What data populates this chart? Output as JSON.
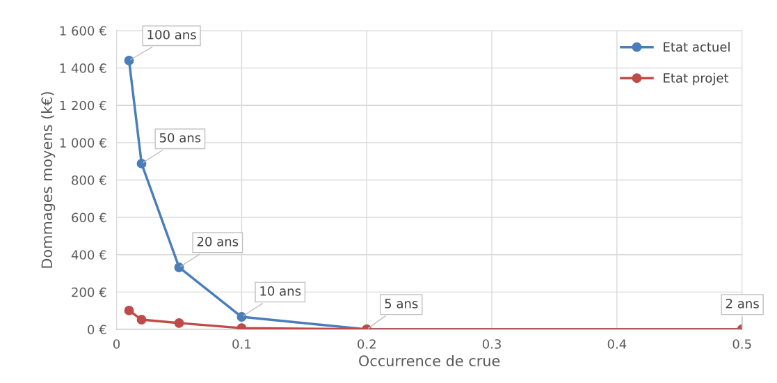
{
  "chart_data": {
    "type": "line",
    "xlabel": "Occurrence de crue",
    "ylabel": "Dommages moyens (k€)",
    "x": [
      0.01,
      0.02,
      0.05,
      0.1,
      0.2,
      0.5
    ],
    "series": [
      {
        "name": "Etat actuel",
        "color": "#4a7ebb",
        "values": [
          1440,
          888,
          332,
          67,
          0,
          0
        ]
      },
      {
        "name": "Etat projet",
        "color": "#be4b48",
        "values": [
          101,
          52,
          34,
          7,
          0,
          0
        ]
      }
    ],
    "xlim": [
      0,
      0.5
    ],
    "xticks": [
      0,
      0.1,
      0.2,
      0.3,
      0.4,
      0.5
    ],
    "ylim": [
      0,
      1600
    ],
    "yticks": [
      {
        "value": 0,
        "label": "0 €"
      },
      {
        "value": 200,
        "label": "200 €"
      },
      {
        "value": 400,
        "label": "400 €"
      },
      {
        "value": 600,
        "label": "600 €"
      },
      {
        "value": 800,
        "label": "800 €"
      },
      {
        "value": 1000,
        "label": "1 000 €"
      },
      {
        "value": 1200,
        "label": "1 200 €"
      },
      {
        "value": 1400,
        "label": "1 400 €"
      },
      {
        "value": 1600,
        "label": "1 600 €"
      }
    ],
    "annotations": [
      {
        "text": "100 ans",
        "x": 0.01,
        "y": 1440
      },
      {
        "text": "50 ans",
        "x": 0.02,
        "y": 888
      },
      {
        "text": "20 ans",
        "x": 0.05,
        "y": 332
      },
      {
        "text": "10 ans",
        "x": 0.1,
        "y": 67
      },
      {
        "text": "5 ans",
        "x": 0.2,
        "y": 0
      },
      {
        "text": "2 ans",
        "x": 0.5,
        "y": 0
      }
    ],
    "grid": true,
    "legend": "top right",
    "marker": "circle",
    "line_style": "solid"
  }
}
